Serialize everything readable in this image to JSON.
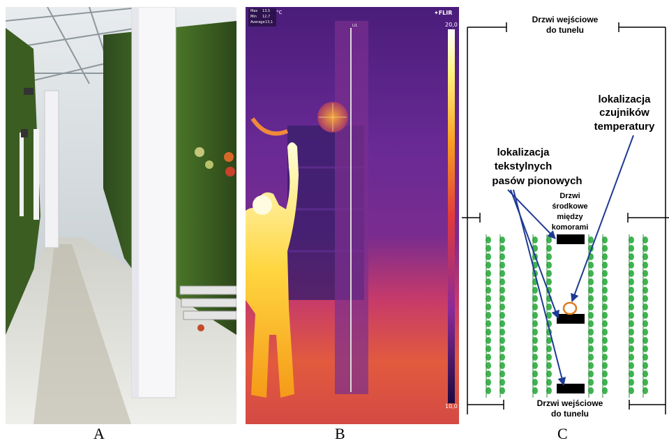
{
  "captions": {
    "a": "A",
    "b": "B",
    "c": "C"
  },
  "thermal": {
    "stats": [
      {
        "label": "Max",
        "value": "13,5"
      },
      {
        "label": "Min",
        "value": "12,7"
      },
      {
        "label": "Average",
        "value": "13,1"
      }
    ],
    "unit": "°C",
    "brand": "FLIR",
    "scale_max": "20,0",
    "scale_min": "10,0",
    "line_label": "Li1"
  },
  "diagram": {
    "top_door": [
      "Drzwi wejściowe",
      "do tunelu"
    ],
    "bottom_door": [
      "Drzwi wejściowe",
      "do tunelu"
    ],
    "middle_door": [
      "Drzwi",
      "środkowe",
      "między",
      "komorami"
    ],
    "sensor_label": [
      "lokalizacja",
      "czujników",
      "temperatury"
    ],
    "strips_label": [
      "lokalizacja",
      "tekstylnych",
      "pasów pionowych"
    ],
    "colors": {
      "plant": "#3fb34f",
      "arrow": "#1f3a93",
      "sensor": "#e07a1f",
      "strip": "#000000"
    }
  }
}
